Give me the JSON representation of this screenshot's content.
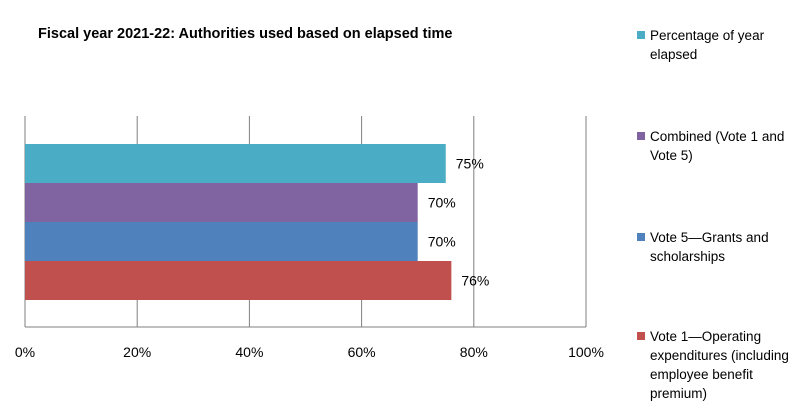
{
  "chart_data": {
    "type": "bar",
    "orientation": "horizontal",
    "title": "Fiscal year 2021-22: Authorities used based on elapsed time",
    "xlabel": "",
    "ylabel": "",
    "xlim": [
      0,
      100
    ],
    "x_ticks": [
      "0%",
      "20%",
      "40%",
      "60%",
      "80%",
      "100%"
    ],
    "grid": "vertical",
    "legend_position": "right",
    "series": [
      {
        "name": "Percentage of year elapsed",
        "value": 75,
        "label": "75%",
        "color": "#4BACC6"
      },
      {
        "name": "Combined (Vote 1 and Vote 5)",
        "value": 70,
        "label": "70%",
        "color": "#8064A2"
      },
      {
        "name": "Vote 5—Grants and scholarships",
        "value": 70,
        "label": "70%",
        "color": "#4F81BD"
      },
      {
        "name": "Vote 1—Operating expenditures (including employee benefit premium)",
        "value": 76,
        "label": "76%",
        "color": "#C0504D"
      }
    ]
  }
}
